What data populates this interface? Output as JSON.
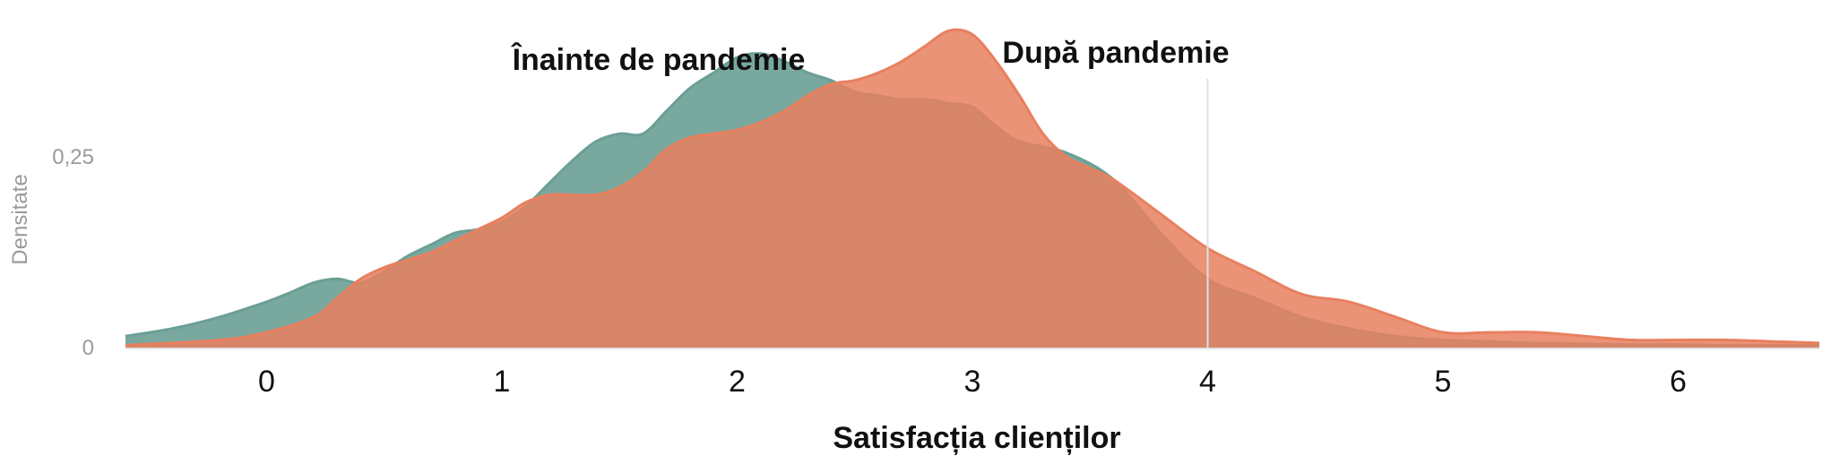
{
  "chart_data": {
    "type": "area",
    "xlabel": "Satisfacția clienților",
    "ylabel": "Densitate",
    "xlim": [
      -0.6,
      6.6
    ],
    "ylim": [
      0,
      0.42
    ],
    "x_ticks": [
      0,
      1,
      2,
      3,
      4,
      5,
      6
    ],
    "x_tick_labels": [
      "0",
      "1",
      "2",
      "3",
      "4",
      "5",
      "6"
    ],
    "y_ticks": [
      0,
      0.25
    ],
    "y_tick_labels": [
      "0",
      "0,25"
    ],
    "reference_line_x": 4,
    "grid": false,
    "legend": "none",
    "series": [
      {
        "name": "Înainte de pandemie",
        "color": "#6a9f95",
        "x": [
          -0.6,
          -0.4,
          -0.2,
          0.0,
          0.1,
          0.2,
          0.3,
          0.4,
          0.5,
          0.6,
          0.7,
          0.8,
          0.9,
          1.0,
          1.1,
          1.2,
          1.3,
          1.4,
          1.5,
          1.6,
          1.7,
          1.8,
          1.9,
          2.0,
          2.1,
          2.2,
          2.3,
          2.4,
          2.5,
          2.6,
          2.7,
          2.8,
          2.9,
          3.0,
          3.1,
          3.2,
          3.4,
          3.6,
          3.8,
          4.0,
          4.2,
          4.4,
          4.6,
          4.8,
          5.0,
          5.2,
          5.4,
          5.6,
          5.8,
          6.0,
          6.2,
          6.4,
          6.6
        ],
        "y": [
          0.015,
          0.025,
          0.04,
          0.06,
          0.072,
          0.085,
          0.09,
          0.085,
          0.1,
          0.12,
          0.135,
          0.15,
          0.155,
          0.165,
          0.185,
          0.215,
          0.245,
          0.27,
          0.28,
          0.28,
          0.31,
          0.34,
          0.36,
          0.38,
          0.385,
          0.375,
          0.36,
          0.35,
          0.335,
          0.33,
          0.325,
          0.325,
          0.32,
          0.315,
          0.29,
          0.27,
          0.255,
          0.22,
          0.15,
          0.09,
          0.065,
          0.04,
          0.025,
          0.015,
          0.01,
          0.008,
          0.006,
          0.005,
          0.004,
          0.004,
          0.003,
          0.003,
          0.003
        ]
      },
      {
        "name": "După pandemie",
        "color": "#e8805f",
        "x": [
          -0.6,
          -0.2,
          0.0,
          0.2,
          0.3,
          0.4,
          0.5,
          0.6,
          0.7,
          0.8,
          0.9,
          1.0,
          1.1,
          1.2,
          1.3,
          1.4,
          1.5,
          1.6,
          1.7,
          1.8,
          1.9,
          2.0,
          2.1,
          2.2,
          2.3,
          2.4,
          2.5,
          2.6,
          2.7,
          2.8,
          2.9,
          3.0,
          3.1,
          3.2,
          3.3,
          3.4,
          3.5,
          3.6,
          3.8,
          4.0,
          4.2,
          4.4,
          4.6,
          4.8,
          5.0,
          5.2,
          5.4,
          5.6,
          5.8,
          6.0,
          6.2,
          6.4,
          6.6
        ],
        "y": [
          0.003,
          0.01,
          0.02,
          0.04,
          0.065,
          0.09,
          0.105,
          0.115,
          0.125,
          0.14,
          0.155,
          0.17,
          0.19,
          0.2,
          0.2,
          0.2,
          0.21,
          0.23,
          0.26,
          0.275,
          0.28,
          0.285,
          0.295,
          0.31,
          0.33,
          0.345,
          0.35,
          0.36,
          0.375,
          0.395,
          0.415,
          0.41,
          0.375,
          0.33,
          0.28,
          0.25,
          0.235,
          0.22,
          0.175,
          0.13,
          0.1,
          0.07,
          0.06,
          0.04,
          0.02,
          0.02,
          0.02,
          0.015,
          0.01,
          0.01,
          0.01,
          0.008,
          0.006
        ]
      }
    ]
  }
}
